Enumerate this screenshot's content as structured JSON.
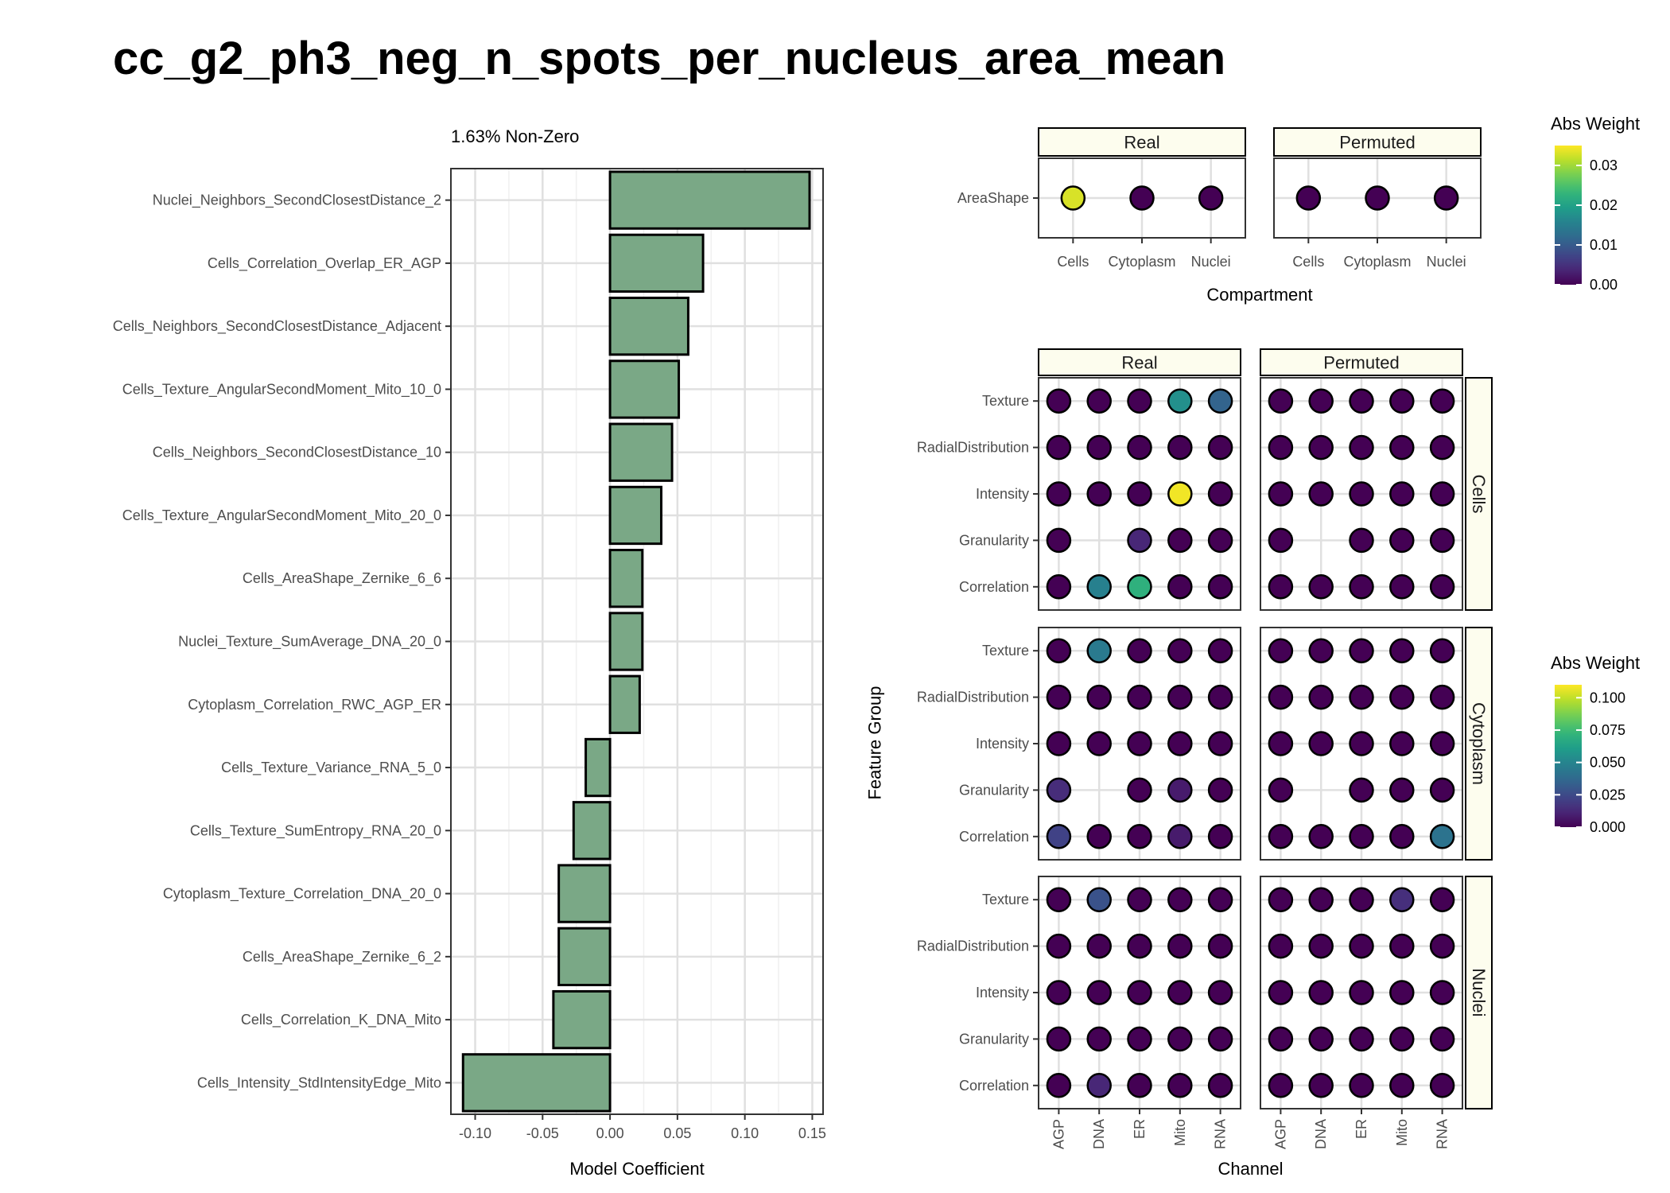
{
  "title": "cc_g2_ph3_neg_n_spots_per_nucleus_area_mean",
  "chart_data": [
    {
      "type": "bar",
      "orientation": "horizontal",
      "subtitle": "1.63% Non-Zero",
      "xlabel": "Model Coefficient",
      "ylabel": "",
      "xlim": [
        -0.118,
        0.158
      ],
      "xticks": [
        -0.1,
        -0.05,
        0.0,
        0.05,
        0.1,
        0.15
      ],
      "xtick_labels": [
        "-0.10",
        "-0.05",
        "0.00",
        "0.05",
        "0.10",
        "0.15"
      ],
      "grid": true,
      "bar_fill": "#7aa886",
      "categories": [
        "Nuclei_Neighbors_SecondClosestDistance_2",
        "Cells_Correlation_Overlap_ER_AGP",
        "Cells_Neighbors_SecondClosestDistance_Adjacent",
        "Cells_Texture_AngularSecondMoment_Mito_10_0",
        "Cells_Neighbors_SecondClosestDistance_10",
        "Cells_Texture_AngularSecondMoment_Mito_20_0",
        "Cells_AreaShape_Zernike_6_6",
        "Nuclei_Texture_SumAverage_DNA_20_0",
        "Cytoplasm_Correlation_RWC_AGP_ER",
        "Cells_Texture_Variance_RNA_5_0",
        "Cells_Texture_SumEntropy_RNA_20_0",
        "Cytoplasm_Texture_Correlation_DNA_20_0",
        "Cells_AreaShape_Zernike_6_2",
        "Cells_Correlation_K_DNA_Mito",
        "Cells_Intensity_StdIntensityEdge_Mito"
      ],
      "values": [
        0.148,
        0.069,
        0.058,
        0.051,
        0.046,
        0.038,
        0.024,
        0.024,
        0.022,
        -0.018,
        -0.027,
        -0.038,
        -0.038,
        -0.042,
        -0.109
      ]
    },
    {
      "type": "scatter",
      "subtitle": "AreaShape",
      "xlabel": "Compartment",
      "ylabel": "",
      "panels": [
        "Real",
        "Permuted"
      ],
      "categories": [
        "Cells",
        "Cytoplasm",
        "Nuclei"
      ],
      "rows": [
        "AreaShape"
      ],
      "values": {
        "Real": [
          [
            0.033,
            0.0,
            0.0
          ]
        ],
        "Permuted": [
          [
            0.0,
            0.0,
            0.0
          ]
        ]
      },
      "legend": {
        "title": "Abs Weight",
        "position": "right",
        "range": [
          0,
          0.035
        ],
        "ticks": [
          0.0,
          0.01,
          0.02,
          0.03
        ],
        "tick_labels": [
          "0.00",
          "0.01",
          "0.02",
          "0.03"
        ]
      }
    },
    {
      "type": "scatter",
      "xlabel": "Channel",
      "ylabel": "Feature Group",
      "columns": [
        "Real",
        "Permuted"
      ],
      "compartments": [
        "Cells",
        "Cytoplasm",
        "Nuclei"
      ],
      "categories": [
        "AGP",
        "DNA",
        "ER",
        "Mito",
        "RNA"
      ],
      "rows": [
        "Texture",
        "RadialDistribution",
        "Intensity",
        "Granularity",
        "Correlation"
      ],
      "values": {
        "Real": {
          "Cells": [
            [
              0.0,
              0.0,
              0.0,
              0.055,
              0.035
            ],
            [
              0.0,
              0.0,
              0.0,
              0.0,
              0.0
            ],
            [
              0.0,
              0.0,
              0.0,
              0.108,
              0.0
            ],
            [
              0.0,
              null,
              0.012,
              0.0,
              0.0
            ],
            [
              0.0,
              0.048,
              0.07,
              0.0,
              0.0
            ]
          ],
          "Cytoplasm": [
            [
              0.0,
              0.045,
              0.0,
              0.0,
              0.0
            ],
            [
              0.0,
              0.0,
              0.0,
              0.0,
              0.0
            ],
            [
              0.0,
              0.0,
              0.0,
              0.0,
              0.0
            ],
            [
              0.014,
              null,
              0.0,
              0.008,
              0.0
            ],
            [
              0.022,
              0.0,
              0.0,
              0.008,
              0.0
            ]
          ],
          "Nuclei": [
            [
              0.0,
              0.028,
              0.0,
              0.0,
              0.0
            ],
            [
              0.0,
              0.0,
              0.0,
              0.0,
              0.0
            ],
            [
              0.0,
              0.0,
              0.0,
              0.0,
              0.0
            ],
            [
              0.0,
              0.0,
              0.0,
              0.0,
              0.0
            ],
            [
              0.0,
              0.012,
              0.0,
              0.0,
              0.0
            ]
          ]
        },
        "Permuted": {
          "Cells": [
            [
              0.0,
              0.0,
              0.0,
              0.0,
              0.0
            ],
            [
              0.0,
              0.0,
              0.0,
              0.0,
              0.0
            ],
            [
              0.0,
              0.0,
              0.0,
              0.0,
              0.0
            ],
            [
              0.0,
              null,
              0.0,
              0.0,
              0.0
            ],
            [
              0.0,
              0.0,
              0.0,
              0.0,
              0.0
            ]
          ],
          "Cytoplasm": [
            [
              0.0,
              0.0,
              0.0,
              0.0,
              0.0
            ],
            [
              0.0,
              0.0,
              0.0,
              0.0,
              0.0
            ],
            [
              0.0,
              0.0,
              0.0,
              0.0,
              0.0
            ],
            [
              0.0,
              null,
              0.0,
              0.0,
              0.0
            ],
            [
              0.0,
              0.0,
              0.0,
              0.0,
              0.042
            ]
          ],
          "Nuclei": [
            [
              0.0,
              0.0,
              0.0,
              0.015,
              0.0
            ],
            [
              0.0,
              0.0,
              0.0,
              0.0,
              0.0
            ],
            [
              0.0,
              0.0,
              0.0,
              0.0,
              0.0
            ],
            [
              0.0,
              0.0,
              0.0,
              0.0,
              0.0
            ],
            [
              0.0,
              0.0,
              0.0,
              0.0,
              0.0
            ]
          ]
        }
      },
      "legend": {
        "title": "Abs Weight",
        "position": "right",
        "range": [
          0,
          0.11
        ],
        "ticks": [
          0.0,
          0.025,
          0.05,
          0.075,
          0.1
        ],
        "tick_labels": [
          "0.000",
          "0.025",
          "0.050",
          "0.075",
          "0.100"
        ]
      }
    }
  ]
}
